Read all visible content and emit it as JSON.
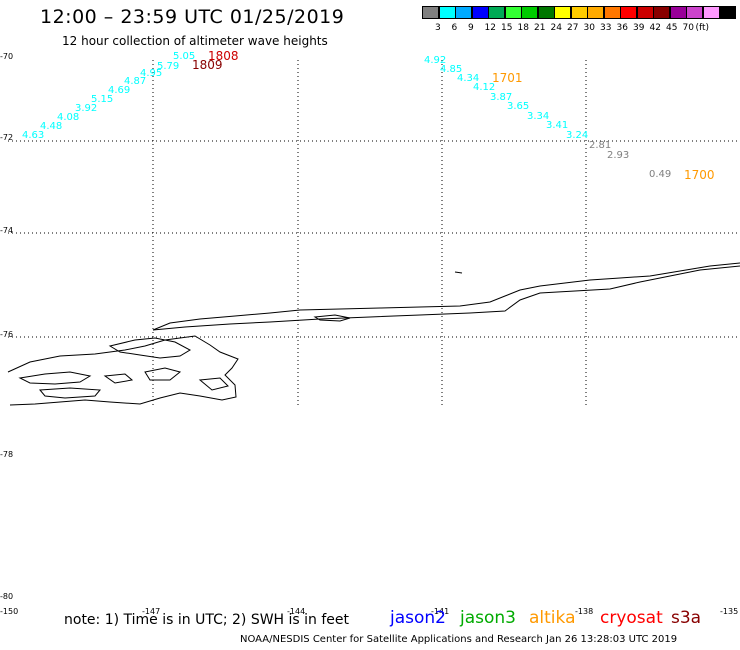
{
  "title": "12:00 – 23:59 UTC 01/25/2019",
  "subtitle": "12 hour collection of altimeter wave heights",
  "colorbar": {
    "colors": [
      "#808080",
      "#00ffff",
      "#00aaff",
      "#0000ff",
      "#00aa55",
      "#33ff33",
      "#00cc00",
      "#007700",
      "#ffff00",
      "#ffcc00",
      "#ffaa00",
      "#ff7700",
      "#ff0000",
      "#cc0000",
      "#880000",
      "#990099",
      "#cc44cc",
      "#ff99ff",
      "#000000"
    ],
    "labels": [
      "3",
      "6",
      "9",
      "12",
      "15",
      "18",
      "21",
      "24",
      "27",
      "30",
      "33",
      "36",
      "39",
      "42",
      "45",
      "70",
      "(ft)"
    ]
  },
  "axes": {
    "y_labels": [
      "-70",
      "-72",
      "-74",
      "-76",
      "-78",
      "-80"
    ],
    "x_labels": [
      "-150",
      "-147",
      "-144",
      "-141",
      "-138",
      "-135"
    ]
  },
  "wave_heights": [
    {
      "text": "4.63",
      "color": "#00ffff"
    },
    {
      "text": "4.48",
      "color": "#00ffff"
    },
    {
      "text": "4.08",
      "color": "#00ffff"
    },
    {
      "text": "3.92",
      "color": "#00ffff"
    },
    {
      "text": "5.15",
      "color": "#00ffff"
    },
    {
      "text": "4.69",
      "color": "#00ffff"
    },
    {
      "text": "4.87",
      "color": "#00ffff"
    },
    {
      "text": "4.95",
      "color": "#00ffff"
    },
    {
      "text": "5.79",
      "color": "#00ffff"
    },
    {
      "text": "5.05",
      "color": "#00ffff"
    },
    {
      "text": "4.92",
      "color": "#00ffff"
    },
    {
      "text": "4.85",
      "color": "#00ffff"
    },
    {
      "text": "4.34",
      "color": "#00ffff"
    },
    {
      "text": "4.12",
      "color": "#00ffff"
    },
    {
      "text": "3.87",
      "color": "#00ffff"
    },
    {
      "text": "3.65",
      "color": "#00ffff"
    },
    {
      "text": "3.34",
      "color": "#00ffff"
    },
    {
      "text": "3.41",
      "color": "#00ffff"
    },
    {
      "text": "3.24",
      "color": "#00ffff"
    },
    {
      "text": "2.81",
      "color": "#808080"
    },
    {
      "text": "2.93",
      "color": "#808080"
    },
    {
      "text": "0.49",
      "color": "#808080"
    }
  ],
  "time_labels": [
    {
      "text": "1808",
      "color": "#cc0000"
    },
    {
      "text": "1809",
      "color": "#880000"
    },
    {
      "text": "1701",
      "color": "#ff9900"
    },
    {
      "text": "1700",
      "color": "#ff9900"
    }
  ],
  "note": "note: 1) Time is in UTC; 2) SWH is in feet",
  "satellites": [
    {
      "name": "jason2",
      "color": "#0000ff"
    },
    {
      "name": "jason3",
      "color": "#00aa00"
    },
    {
      "name": "altika",
      "color": "#ff9900"
    },
    {
      "name": "cryosat",
      "color": "#ff0000"
    },
    {
      "name": "s3a",
      "color": "#880000"
    }
  ],
  "credit": "NOAA/NESDIS Center for Satellite Applications and Research   Jan 26 13:28:03 UTC 2019"
}
